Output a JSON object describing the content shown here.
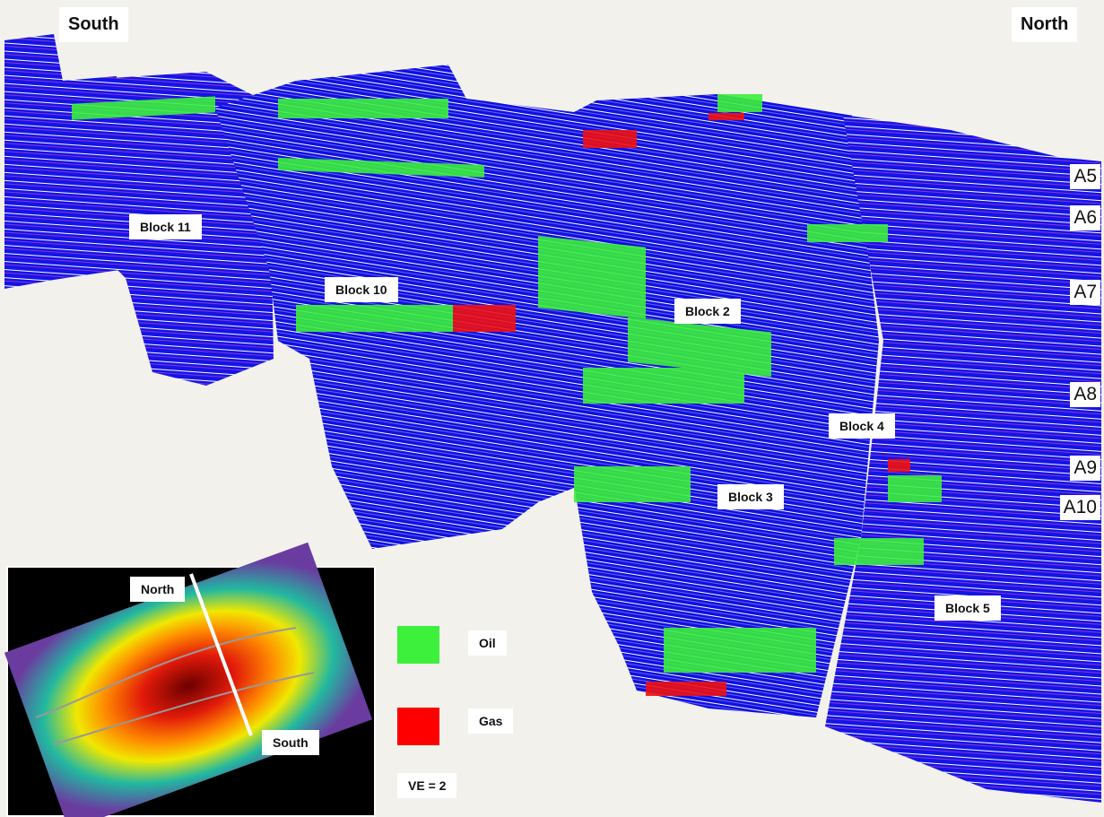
{
  "header": {
    "left": "South",
    "right": "North"
  },
  "horizons": [
    "A5",
    "A6",
    "A7",
    "A8",
    "A9",
    "A10"
  ],
  "blocks": [
    "Block 11",
    "Block 10",
    "Block 2",
    "Block 4",
    "Block 3",
    "Block 5"
  ],
  "inset": {
    "north": "North",
    "south": "South"
  },
  "legend": {
    "oil": "Oil",
    "gas": "Gas",
    "note": "VE = 2"
  }
}
